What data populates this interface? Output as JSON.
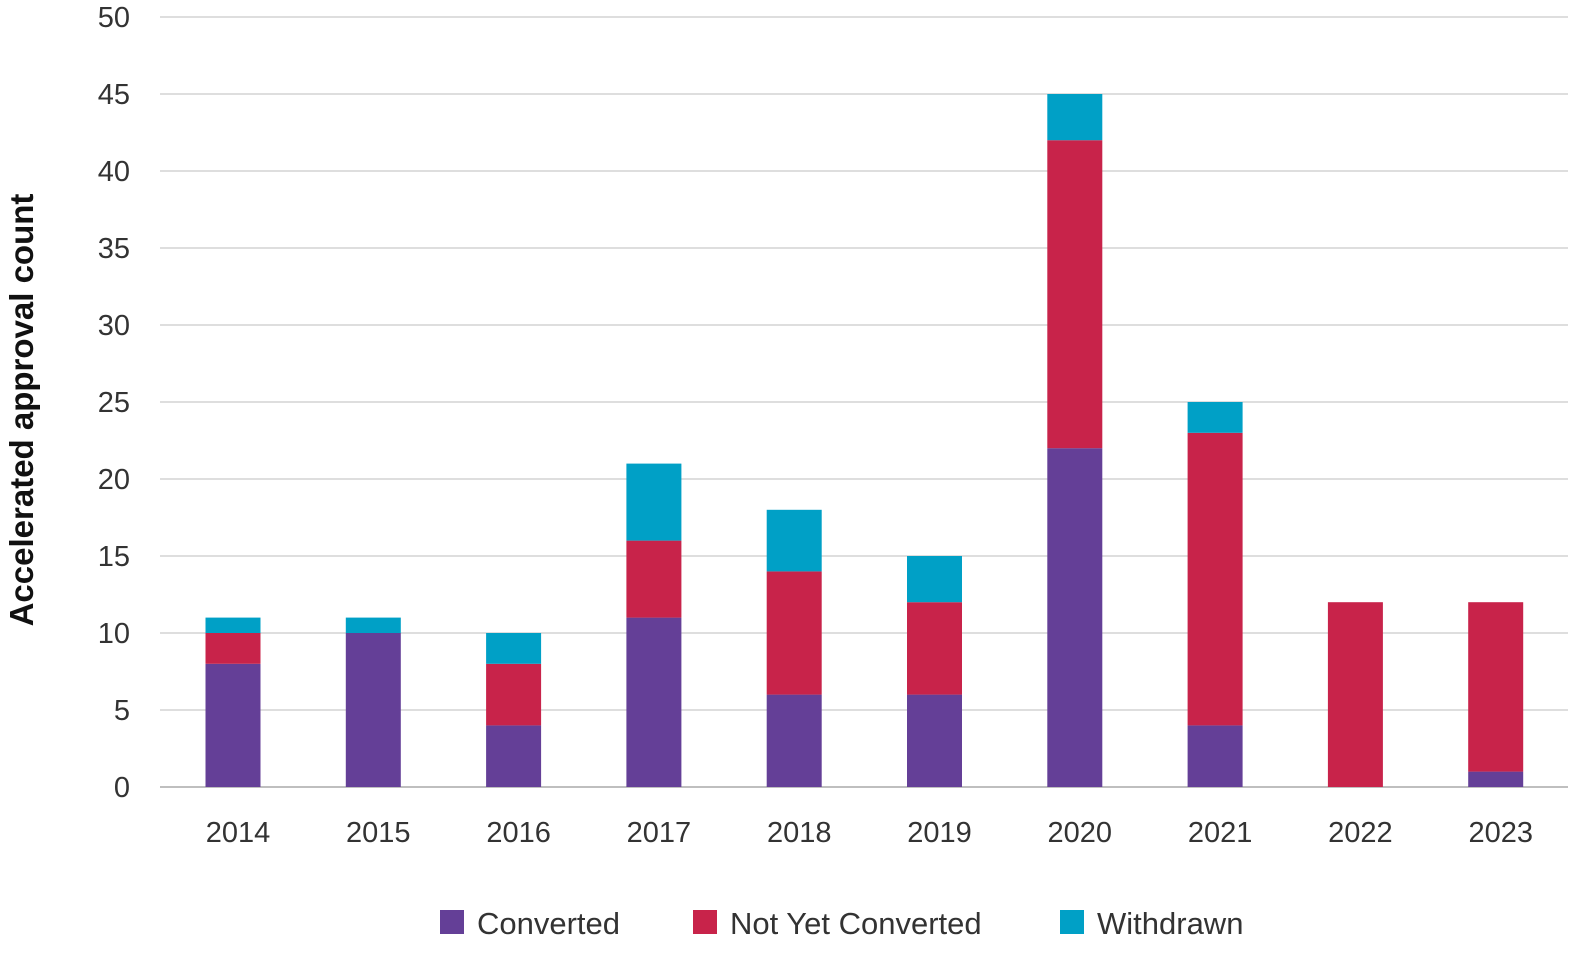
{
  "chart_data": {
    "type": "bar",
    "stacked": true,
    "title": "",
    "xlabel": "",
    "ylabel": "Accelerated approval count",
    "ylim": [
      0,
      50
    ],
    "yticks": [
      0,
      5,
      10,
      15,
      20,
      25,
      30,
      35,
      40,
      45,
      50
    ],
    "grid": true,
    "legend_position": "bottom",
    "categories": [
      "2014",
      "2015",
      "2016",
      "2017",
      "2018",
      "2019",
      "2020",
      "2021",
      "2022",
      "2023"
    ],
    "series": [
      {
        "name": "Converted",
        "color": "#643f97",
        "values": [
          8,
          10,
          4,
          11,
          6,
          6,
          22,
          4,
          0,
          1
        ]
      },
      {
        "name": "Not Yet Converted",
        "color": "#c8234a",
        "values": [
          2,
          0,
          4,
          5,
          8,
          6,
          20,
          19,
          12,
          11
        ]
      },
      {
        "name": "Withdrawn",
        "color": "#00a0c6",
        "values": [
          1,
          1,
          2,
          5,
          4,
          3,
          3,
          2,
          0,
          0
        ]
      }
    ],
    "colors": {
      "grid": "#d4d4d4",
      "axis": "#bfbfbf"
    }
  }
}
